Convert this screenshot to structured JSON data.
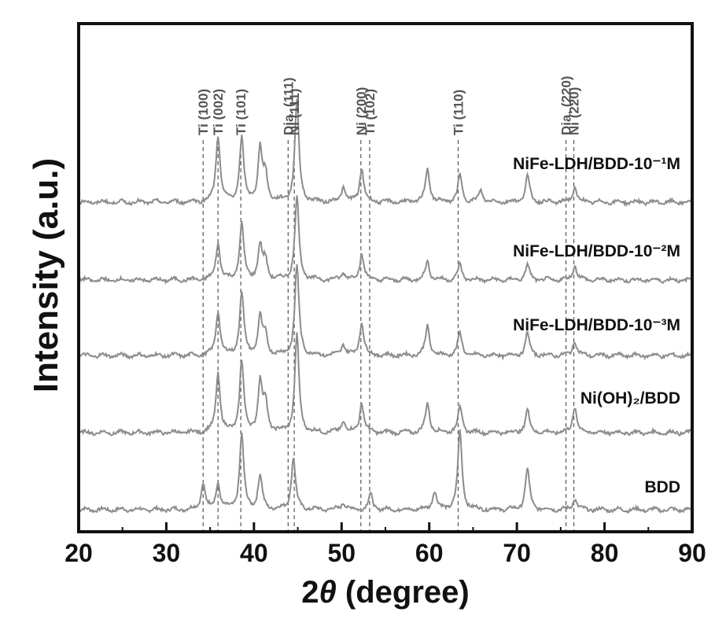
{
  "chart_data": {
    "type": "line",
    "xlabel": "2θ (degree)",
    "ylabel": "Intensity (a.u.)",
    "xlim": [
      20,
      90
    ],
    "xticks": [
      20,
      30,
      40,
      50,
      60,
      70,
      80,
      90
    ],
    "grid": false,
    "legend": "none",
    "reference_lines": [
      {
        "label": "Ti (100)",
        "x": 34.2
      },
      {
        "label": "Ti (002)",
        "x": 35.9
      },
      {
        "label": "Ti (101)",
        "x": 38.5
      },
      {
        "label": "Dia. (111)",
        "x": 43.9
      },
      {
        "label": "Ni (111)",
        "x": 44.6
      },
      {
        "label": "Ni (200)",
        "x": 52.2
      },
      {
        "label": "Ti (102)",
        "x": 53.2
      },
      {
        "label": "Ti (110)",
        "x": 63.3
      },
      {
        "label": "Dia. (220)",
        "x": 75.6
      },
      {
        "label": "Ni (220)",
        "x": 76.5
      }
    ],
    "series": [
      {
        "name": "BDD",
        "peaks": [
          {
            "x": 34.2,
            "y": 0.35
          },
          {
            "x": 35.9,
            "y": 0.35
          },
          {
            "x": 38.6,
            "y": 1.0
          },
          {
            "x": 40.7,
            "y": 0.45
          },
          {
            "x": 44.5,
            "y": 0.7
          },
          {
            "x": 50.2,
            "y": 0.1
          },
          {
            "x": 53.3,
            "y": 0.2
          },
          {
            "x": 60.6,
            "y": 0.25
          },
          {
            "x": 63.5,
            "y": 1.05
          },
          {
            "x": 71.2,
            "y": 0.55
          },
          {
            "x": 76.6,
            "y": 0.15
          }
        ]
      },
      {
        "name": "Ni(OH)₂/BDD",
        "peaks": [
          {
            "x": 35.9,
            "y": 0.8
          },
          {
            "x": 38.6,
            "y": 0.95
          },
          {
            "x": 40.7,
            "y": 0.65
          },
          {
            "x": 41.3,
            "y": 0.4
          },
          {
            "x": 44.9,
            "y": 1.3
          },
          {
            "x": 50.2,
            "y": 0.15
          },
          {
            "x": 52.3,
            "y": 0.4
          },
          {
            "x": 59.8,
            "y": 0.4
          },
          {
            "x": 63.5,
            "y": 0.35
          },
          {
            "x": 71.2,
            "y": 0.3
          },
          {
            "x": 76.6,
            "y": 0.35
          }
        ]
      },
      {
        "name": "NiFe-LDH/BDD-10⁻³M",
        "peaks": [
          {
            "x": 35.9,
            "y": 0.6
          },
          {
            "x": 38.6,
            "y": 0.85
          },
          {
            "x": 40.7,
            "y": 0.5
          },
          {
            "x": 41.3,
            "y": 0.25
          },
          {
            "x": 44.9,
            "y": 1.2
          },
          {
            "x": 50.2,
            "y": 0.15
          },
          {
            "x": 52.3,
            "y": 0.45
          },
          {
            "x": 59.8,
            "y": 0.4
          },
          {
            "x": 63.5,
            "y": 0.3
          },
          {
            "x": 71.2,
            "y": 0.3
          },
          {
            "x": 76.6,
            "y": 0.2
          }
        ]
      },
      {
        "name": "NiFe-LDH/BDD-10⁻²M",
        "peaks": [
          {
            "x": 35.9,
            "y": 0.5
          },
          {
            "x": 38.6,
            "y": 0.75
          },
          {
            "x": 40.7,
            "y": 0.45
          },
          {
            "x": 41.3,
            "y": 0.25
          },
          {
            "x": 44.9,
            "y": 1.1
          },
          {
            "x": 50.2,
            "y": 0.1
          },
          {
            "x": 52.3,
            "y": 0.35
          },
          {
            "x": 59.8,
            "y": 0.25
          },
          {
            "x": 63.5,
            "y": 0.2
          },
          {
            "x": 71.2,
            "y": 0.2
          },
          {
            "x": 76.6,
            "y": 0.2
          }
        ]
      },
      {
        "name": "NiFe-LDH/BDD-10⁻¹M",
        "peaks": [
          {
            "x": 35.9,
            "y": 0.9
          },
          {
            "x": 38.6,
            "y": 0.85
          },
          {
            "x": 40.7,
            "y": 0.7
          },
          {
            "x": 41.3,
            "y": 0.35
          },
          {
            "x": 44.9,
            "y": 1.35
          },
          {
            "x": 50.2,
            "y": 0.2
          },
          {
            "x": 52.3,
            "y": 0.45
          },
          {
            "x": 59.8,
            "y": 0.45
          },
          {
            "x": 63.5,
            "y": 0.35
          },
          {
            "x": 65.9,
            "y": 0.15
          },
          {
            "x": 71.2,
            "y": 0.35
          },
          {
            "x": 76.6,
            "y": 0.2
          }
        ]
      }
    ]
  },
  "style": {
    "line_color": "#8c8c8c",
    "ref_line_color": "#555555",
    "axis_color": "#111111"
  }
}
